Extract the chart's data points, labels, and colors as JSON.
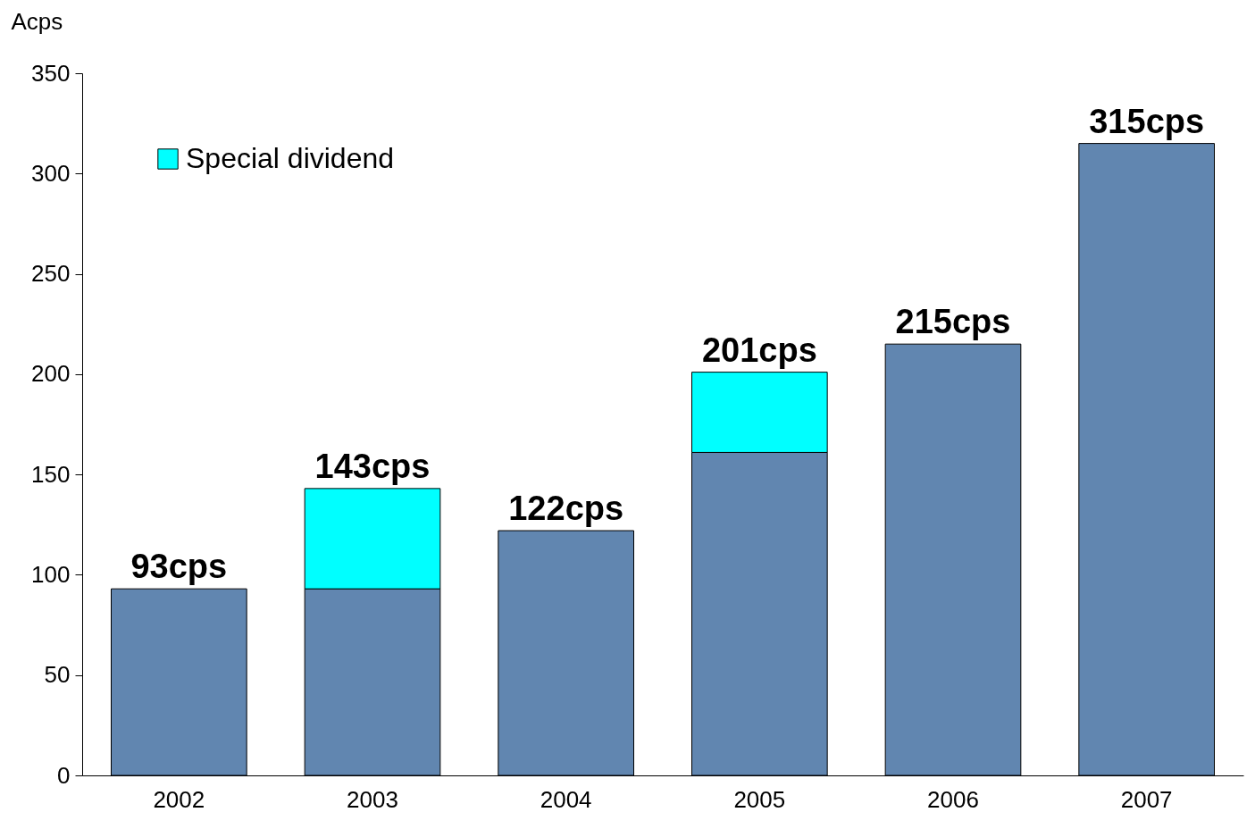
{
  "chart_data": {
    "type": "bar",
    "ylabel": "Acps",
    "categories": [
      "2002",
      "2003",
      "2004",
      "2005",
      "2006",
      "2007"
    ],
    "series": [
      {
        "color": "#6186b0",
        "values": [
          93,
          93,
          122,
          161,
          215,
          315
        ]
      },
      {
        "name": "Special dividend",
        "color": "#00ffff",
        "values": [
          null,
          50,
          null,
          40,
          null,
          null
        ]
      }
    ],
    "stacked": true,
    "totals": [
      "93cps",
      "143cps",
      "122cps",
      "201cps",
      "215cps",
      "315cps"
    ],
    "ylim": [
      0,
      350
    ],
    "yticks": [
      0,
      50,
      100,
      150,
      200,
      250,
      300,
      350
    ],
    "grid": false,
    "legend": "top left"
  }
}
